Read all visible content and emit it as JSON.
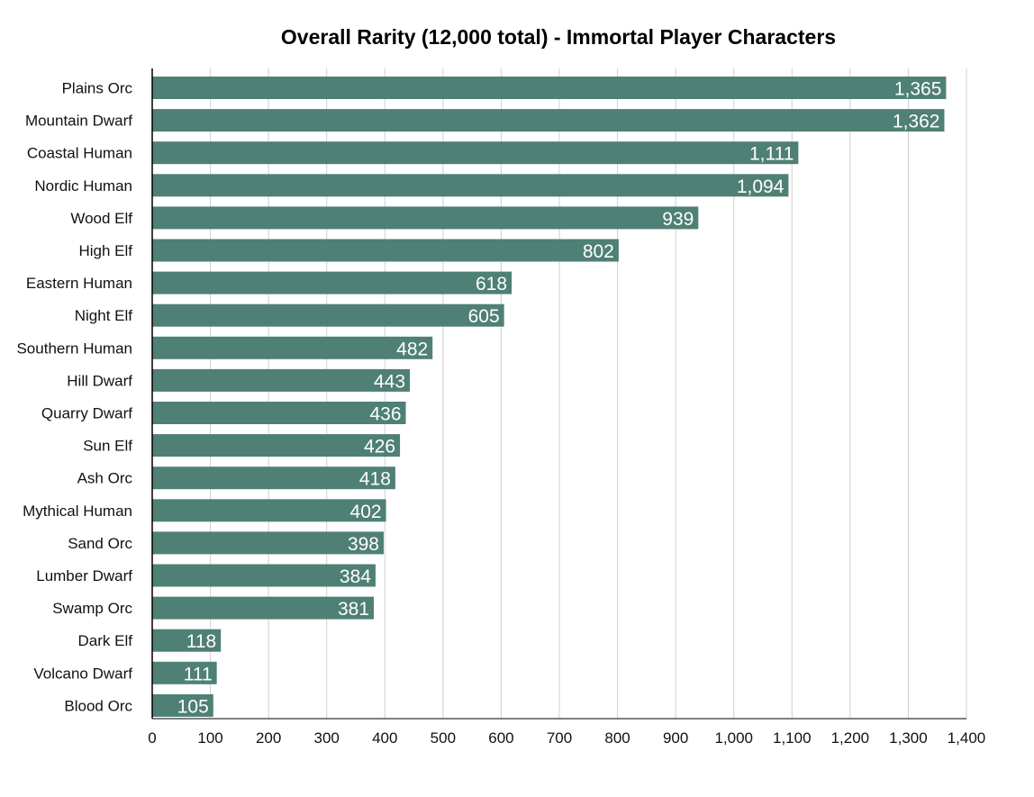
{
  "chart_data": {
    "type": "bar",
    "orientation": "horizontal",
    "title": "Overall Rarity (12,000 total) - Immortal Player Characters",
    "xlabel": "",
    "ylabel": "",
    "xlim": [
      0,
      1400
    ],
    "grid": true,
    "bar_color": "#4f8075",
    "categories": [
      "Plains Orc",
      "Mountain Dwarf",
      "Coastal Human",
      "Nordic Human",
      "Wood Elf",
      "High Elf",
      "Eastern Human",
      "Night Elf",
      "Southern Human",
      "Hill Dwarf",
      "Quarry Dwarf",
      "Sun Elf",
      "Ash Orc",
      "Mythical Human",
      "Sand Orc",
      "Lumber Dwarf",
      "Swamp Orc",
      "Dark Elf",
      "Volcano Dwarf",
      "Blood Orc"
    ],
    "values": [
      1365,
      1362,
      1111,
      1094,
      939,
      802,
      618,
      605,
      482,
      443,
      436,
      426,
      418,
      402,
      398,
      384,
      381,
      118,
      111,
      105
    ],
    "value_labels": [
      "1,365",
      "1,362",
      "1,111",
      "1,094",
      "939",
      "802",
      "618",
      "605",
      "482",
      "443",
      "436",
      "426",
      "418",
      "402",
      "398",
      "384",
      "381",
      "118",
      "111",
      "105"
    ],
    "ticks": [
      0,
      100,
      200,
      300,
      400,
      500,
      600,
      700,
      800,
      900,
      1000,
      1100,
      1200,
      1300,
      1400
    ],
    "tick_labels": [
      "0",
      "100",
      "200",
      "300",
      "400",
      "500",
      "600",
      "700",
      "800",
      "900",
      "1,000",
      "1,100",
      "1,200",
      "1,300",
      "1,400"
    ]
  }
}
